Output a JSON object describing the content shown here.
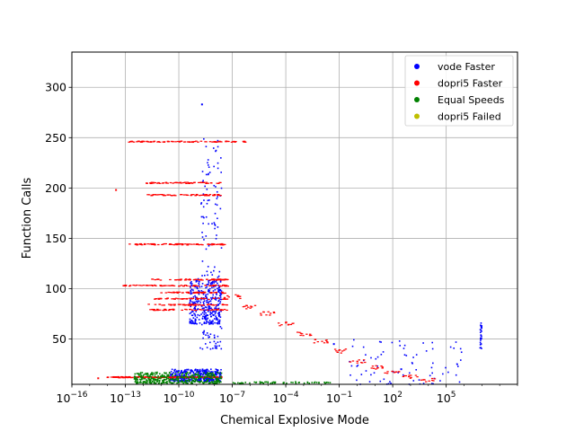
{
  "chart_data": {
    "type": "scatter",
    "title": "",
    "xlabel": "Chemical Explosive Mode",
    "ylabel": "Function Calls",
    "x_scale": "log",
    "xlim": [
      1e-16,
      1000000000.0
    ],
    "ylim": [
      5,
      335
    ],
    "x_ticks": [
      {
        "value": 1e-16,
        "base": "10",
        "exp": "−16"
      },
      {
        "value": 1e-13,
        "base": "10",
        "exp": "−13"
      },
      {
        "value": 1e-10,
        "base": "10",
        "exp": "−10"
      },
      {
        "value": 1e-07,
        "base": "10",
        "exp": "−7"
      },
      {
        "value": 0.0001,
        "base": "10",
        "exp": "−4"
      },
      {
        "value": 0.1,
        "base": "10",
        "exp": "−1"
      },
      {
        "value": 100,
        "base": "10",
        "exp": "2"
      },
      {
        "value": 100000,
        "base": "10",
        "exp": "5"
      }
    ],
    "y_ticks": [
      50,
      100,
      150,
      200,
      250,
      300
    ],
    "grid": true,
    "legend_position": "top-right",
    "series": [
      {
        "name": "vode Faster",
        "color": "#0000ff",
        "clusters": [
          {
            "x_log_range": [
              -10.5,
              -7.6
            ],
            "y_range": [
              8,
              20
            ],
            "count": 360
          },
          {
            "x_log_range": [
              -9.4,
              -7.6
            ],
            "y_range": [
              65,
              110
            ],
            "count": 300
          },
          {
            "x_log_range": [
              -8.8,
              -7.6
            ],
            "y_range": [
              40,
              250
            ],
            "count": 160
          },
          {
            "x_log_range": [
              -0.5,
              6.0
            ],
            "y_range": [
              5,
              50
            ],
            "count": 80
          },
          {
            "x_log_range": [
              6.9,
              7.0
            ],
            "y_range": [
              40,
              68
            ],
            "count": 30
          }
        ],
        "points": [
          {
            "x": 2e-09,
            "y": 283
          },
          {
            "x": 0.05,
            "y": 45
          },
          {
            "x": 300,
            "y": 20
          }
        ]
      },
      {
        "name": "dopri5 Faster",
        "color": "#ff0000",
        "bands": [
          {
            "y": 246,
            "x_log_range": [
              -12.8,
              -6.2
            ],
            "count": 90
          },
          {
            "y": 205,
            "x_log_range": [
              -11.8,
              -7.6
            ],
            "count": 60
          },
          {
            "y": 193,
            "x_log_range": [
              -11.8,
              -7.6
            ],
            "count": 60
          },
          {
            "y": 144,
            "x_log_range": [
              -12.8,
              -7.4
            ],
            "count": 80
          },
          {
            "y": 109,
            "x_log_range": [
              -11.6,
              -7.2
            ],
            "count": 60
          },
          {
            "y": 103,
            "x_log_range": [
              -13.2,
              -7.2
            ],
            "count": 80
          },
          {
            "y": 96,
            "x_log_range": [
              -11.0,
              -7.4
            ],
            "count": 50
          },
          {
            "y": 90,
            "x_log_range": [
              -11.4,
              -7.2
            ],
            "count": 50
          },
          {
            "y": 84,
            "x_log_range": [
              -11.8,
              -7.2
            ],
            "count": 50
          },
          {
            "y": 79,
            "x_log_range": [
              -11.6,
              -7.2
            ],
            "count": 50
          },
          {
            "y": 12,
            "x_log_range": [
              -14.0,
              -7.6
            ],
            "count": 160
          }
        ],
        "trail": [
          {
            "x": 1e-07,
            "y": 92
          },
          {
            "x": 1e-06,
            "y": 82
          },
          {
            "x": 1e-05,
            "y": 75
          },
          {
            "x": 0.0001,
            "y": 65
          },
          {
            "x": 0.001,
            "y": 55
          },
          {
            "x": 0.01,
            "y": 48
          },
          {
            "x": 0.1,
            "y": 38
          },
          {
            "x": 1,
            "y": 28
          },
          {
            "x": 10,
            "y": 22
          },
          {
            "x": 100,
            "y": 17
          },
          {
            "x": 1000,
            "y": 12
          },
          {
            "x": 10000,
            "y": 9
          }
        ],
        "points": [
          {
            "x": 3e-14,
            "y": 198
          },
          {
            "x": 3e-15,
            "y": 11
          }
        ]
      },
      {
        "name": "Equal Speeds",
        "color": "#008000",
        "clusters": [
          {
            "x_log_range": [
              -12.5,
              -7.6
            ],
            "y_range": [
              6,
              17
            ],
            "count": 380
          },
          {
            "x_log_range": [
              -7.0,
              -1.5
            ],
            "y_range": [
              6,
              7.5
            ],
            "count": 60
          }
        ]
      },
      {
        "name": "dopri5 Failed",
        "color": "#bfbf00",
        "points": []
      }
    ]
  }
}
